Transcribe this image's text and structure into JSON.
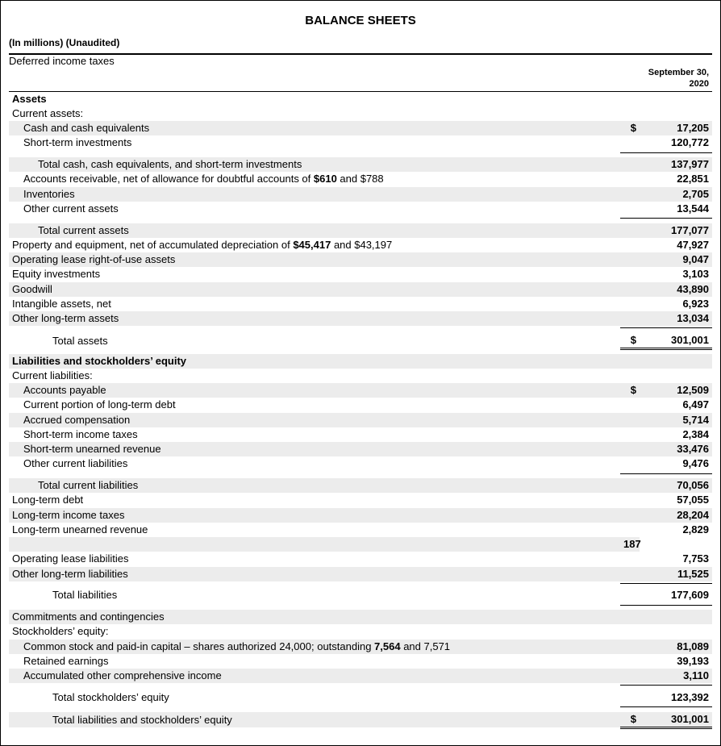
{
  "title": "BALANCE SHEETS",
  "subtitle": "(In millions) (Unaudited)",
  "date_line1": "September 30,",
  "date_line2": "2020",
  "sections": {
    "assets": {
      "heading": "Assets",
      "current_label": "Current assets:",
      "cash": {
        "label": "Cash and cash equivalents",
        "value": "17,205",
        "symbol": "$"
      },
      "sti": {
        "label": "Short-term investments",
        "value": "120,772"
      },
      "total_cash": {
        "label": "Total cash, cash equivalents, and short-term investments",
        "value": "137,977"
      },
      "ar": {
        "label_pre": "Accounts receivable, net of allowance for doubtful accounts of ",
        "bold": "$610",
        "after": " and $788",
        "value": "22,851"
      },
      "inv": {
        "label": "Inventories",
        "value": "2,705"
      },
      "oca": {
        "label": "Other current assets",
        "value": "13,544"
      },
      "total_current": {
        "label": "Total current assets",
        "value": "177,077"
      },
      "ppe": {
        "label_pre": "Property and equipment, net of accumulated depreciation of ",
        "bold": "$45,417",
        "after": " and $43,197",
        "value": "47,927"
      },
      "rou": {
        "label": "Operating lease right-of-use assets",
        "value": "9,047"
      },
      "eqinv": {
        "label": "Equity investments",
        "value": "3,103"
      },
      "goodwill": {
        "label": "Goodwill",
        "value": "43,890"
      },
      "intangibles": {
        "label": "Intangible assets, net",
        "value": "6,923"
      },
      "olta": {
        "label": "Other long-term assets",
        "value": "13,034"
      },
      "total_assets": {
        "label": "Total assets",
        "value": "301,001",
        "symbol": "$"
      }
    },
    "liab": {
      "heading": "Liabilities and stockholders’ equity",
      "current_label": "Current liabilities:",
      "ap": {
        "label": "Accounts payable",
        "value": "12,509",
        "symbol": "$"
      },
      "cpltd": {
        "label": "Current portion of long-term debt",
        "value": "6,497"
      },
      "accomp": {
        "label": "Accrued compensation",
        "value": "5,714"
      },
      "stit": {
        "label": "Short-term income taxes",
        "value": "2,384"
      },
      "stur": {
        "label": "Short-term unearned revenue",
        "value": "33,476"
      },
      "ocl": {
        "label": "Other current liabilities",
        "value": "9,476"
      },
      "total_current": {
        "label": "Total current liabilities",
        "value": "70,056"
      },
      "ltd": {
        "label": "Long-term debt",
        "value": "57,055"
      },
      "ltit": {
        "label": "Long-term income taxes",
        "value": "28,204"
      },
      "ltur": {
        "label": "Long-term unearned revenue",
        "value": "2,829"
      },
      "dit": {
        "label": "Deferred income taxes",
        "value": "187"
      },
      "oll": {
        "label": "Operating lease liabilities",
        "value": "7,753"
      },
      "oltl": {
        "label": "Other long-term liabilities",
        "value": "11,525"
      },
      "total_liab": {
        "label": "Total liabilities",
        "value": "177,609"
      }
    },
    "equity": {
      "commit": "Commitments and contingencies",
      "heading": "Stockholders’ equity:",
      "common": {
        "label_pre": "Common stock and paid-in capital – shares authorized 24,000; outstanding ",
        "bold": "7,564",
        "after": " and 7,571",
        "value": "81,089"
      },
      "re": {
        "label": "Retained earnings",
        "value": "39,193"
      },
      "aoci": {
        "label": "Accumulated other comprehensive income",
        "value": "3,110"
      },
      "total_se": {
        "label": "Total stockholders’ equity",
        "value": "123,392"
      },
      "total_lse": {
        "label": "Total liabilities and stockholders’ equity",
        "value": "301,001",
        "symbol": "$"
      }
    }
  }
}
